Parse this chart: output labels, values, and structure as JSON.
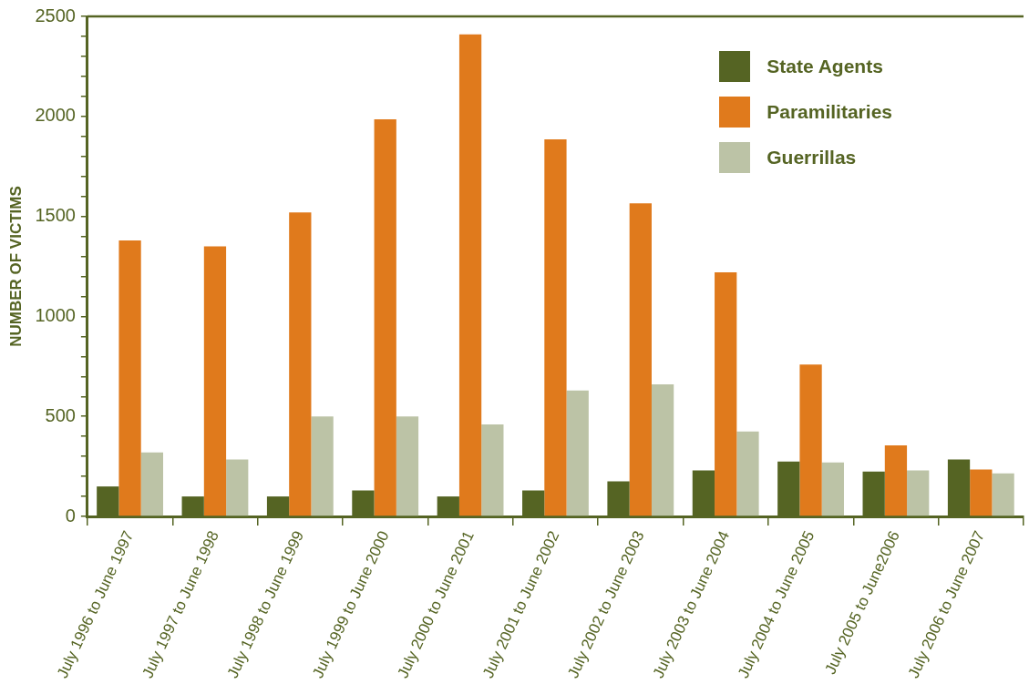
{
  "chart_data": {
    "type": "bar",
    "ylabel": "NUMBER OF VICTIMS",
    "categories": [
      "July 1996 to June 1997",
      "July 1997 to June 1998",
      "July 1998 to June 1999",
      "July 1999 to June 2000",
      "July 2000 to June 2001",
      "July 2001 to June 2002",
      "July 2002 to June 2003",
      "July 2003 to June 2004",
      "July 2004 to June 2005",
      "July 2005 to June2006",
      "July 2006 to June 2007"
    ],
    "series": [
      {
        "name": "State Agents",
        "color": "#556423",
        "values": [
          150,
          100,
          100,
          130,
          100,
          130,
          175,
          230,
          275,
          225,
          285
        ]
      },
      {
        "name": "Paramilitaries",
        "color": "#e07a1c",
        "values": [
          1380,
          1350,
          1520,
          1985,
          2410,
          1885,
          1565,
          1220,
          760,
          355,
          235
        ]
      },
      {
        "name": "Guerrillas",
        "color": "#bcc3a6",
        "values": [
          320,
          285,
          500,
          500,
          460,
          630,
          660,
          425,
          270,
          230,
          215
        ]
      }
    ],
    "ylim": [
      0,
      2500
    ],
    "yticks": [
      0,
      {
        "value": 100,
        "label": null
      },
      {
        "value": 200,
        "label": null
      },
      {
        "value": 300,
        "label": null
      },
      {
        "value": 400,
        "label": null
      },
      500,
      {
        "value": 600,
        "label": null
      },
      {
        "value": 700,
        "label": null
      },
      {
        "value": 800,
        "label": null
      },
      {
        "value": 900,
        "label": null
      },
      1000,
      {
        "value": 1100,
        "label": null
      },
      {
        "value": 1200,
        "label": null
      },
      {
        "value": 1300,
        "label": null
      },
      {
        "value": 1400,
        "label": null
      },
      1500,
      {
        "value": 1600,
        "label": null
      },
      {
        "value": 1700,
        "label": null
      },
      {
        "value": 1800,
        "label": null
      },
      {
        "value": 1900,
        "label": null
      },
      2000,
      {
        "value": 2100,
        "label": null
      },
      {
        "value": 2200,
        "label": null
      },
      {
        "value": 2300,
        "label": null
      },
      {
        "value": 2400,
        "label": null
      },
      2500
    ],
    "grid": false,
    "legend": "top right"
  }
}
